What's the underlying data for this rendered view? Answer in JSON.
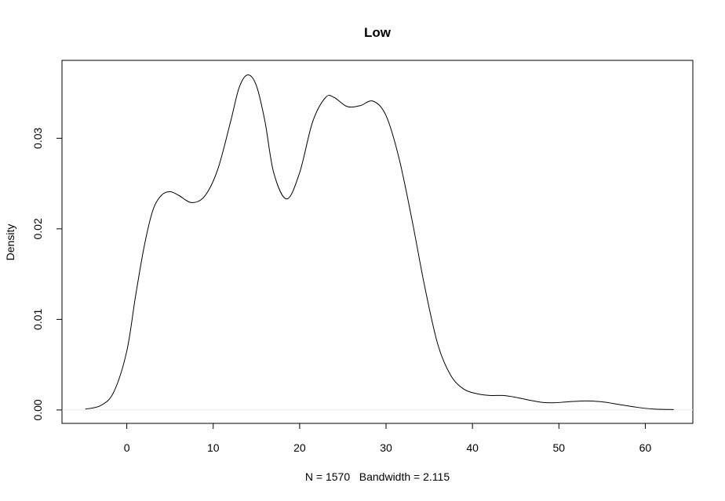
{
  "chart_data": {
    "type": "line",
    "title": "Low",
    "xlabel": "N = 1570   Bandwidth = 2.115",
    "ylabel": "Density",
    "xlim": [
      -7.5,
      65.5
    ],
    "ylim": [
      -0.00148,
      0.0386
    ],
    "x_ticks": [
      0,
      10,
      20,
      30,
      40,
      50,
      60
    ],
    "x_tick_labels": [
      "0",
      "10",
      "20",
      "30",
      "40",
      "50",
      "60"
    ],
    "y_ticks": [
      0.0,
      0.01,
      0.02,
      0.03
    ],
    "y_tick_labels": [
      "0.00",
      "0.01",
      "0.02",
      "0.03"
    ],
    "grid": false,
    "zero_line": true,
    "series": [
      {
        "color": "#000000",
        "x": [
          -4.8,
          -3,
          -1.5,
          0,
          1,
          2,
          3,
          4,
          5,
          6,
          7.5,
          9,
          10.5,
          12,
          13,
          14,
          15,
          16,
          17,
          18.5,
          20,
          21.5,
          23,
          24,
          25.5,
          27,
          28.5,
          30,
          31.5,
          33,
          34.5,
          36,
          37.5,
          39,
          40.5,
          42,
          43.5,
          45,
          46.5,
          48,
          49.5,
          51,
          53,
          55,
          57,
          59,
          61,
          63.3
        ],
        "y": [
          0.0001,
          0.0005,
          0.002,
          0.0065,
          0.0125,
          0.018,
          0.022,
          0.0237,
          0.0241,
          0.0237,
          0.0229,
          0.0236,
          0.0265,
          0.0318,
          0.0356,
          0.037,
          0.0358,
          0.0318,
          0.0262,
          0.0233,
          0.0262,
          0.0318,
          0.0345,
          0.0345,
          0.0335,
          0.0336,
          0.0341,
          0.0325,
          0.0278,
          0.021,
          0.0135,
          0.0072,
          0.0038,
          0.0023,
          0.0018,
          0.0016,
          0.0016,
          0.0014,
          0.0011,
          0.00085,
          0.0008,
          0.0009,
          0.001,
          0.0009,
          0.0006,
          0.0003,
          0.0001,
          5e-05
        ]
      }
    ]
  }
}
